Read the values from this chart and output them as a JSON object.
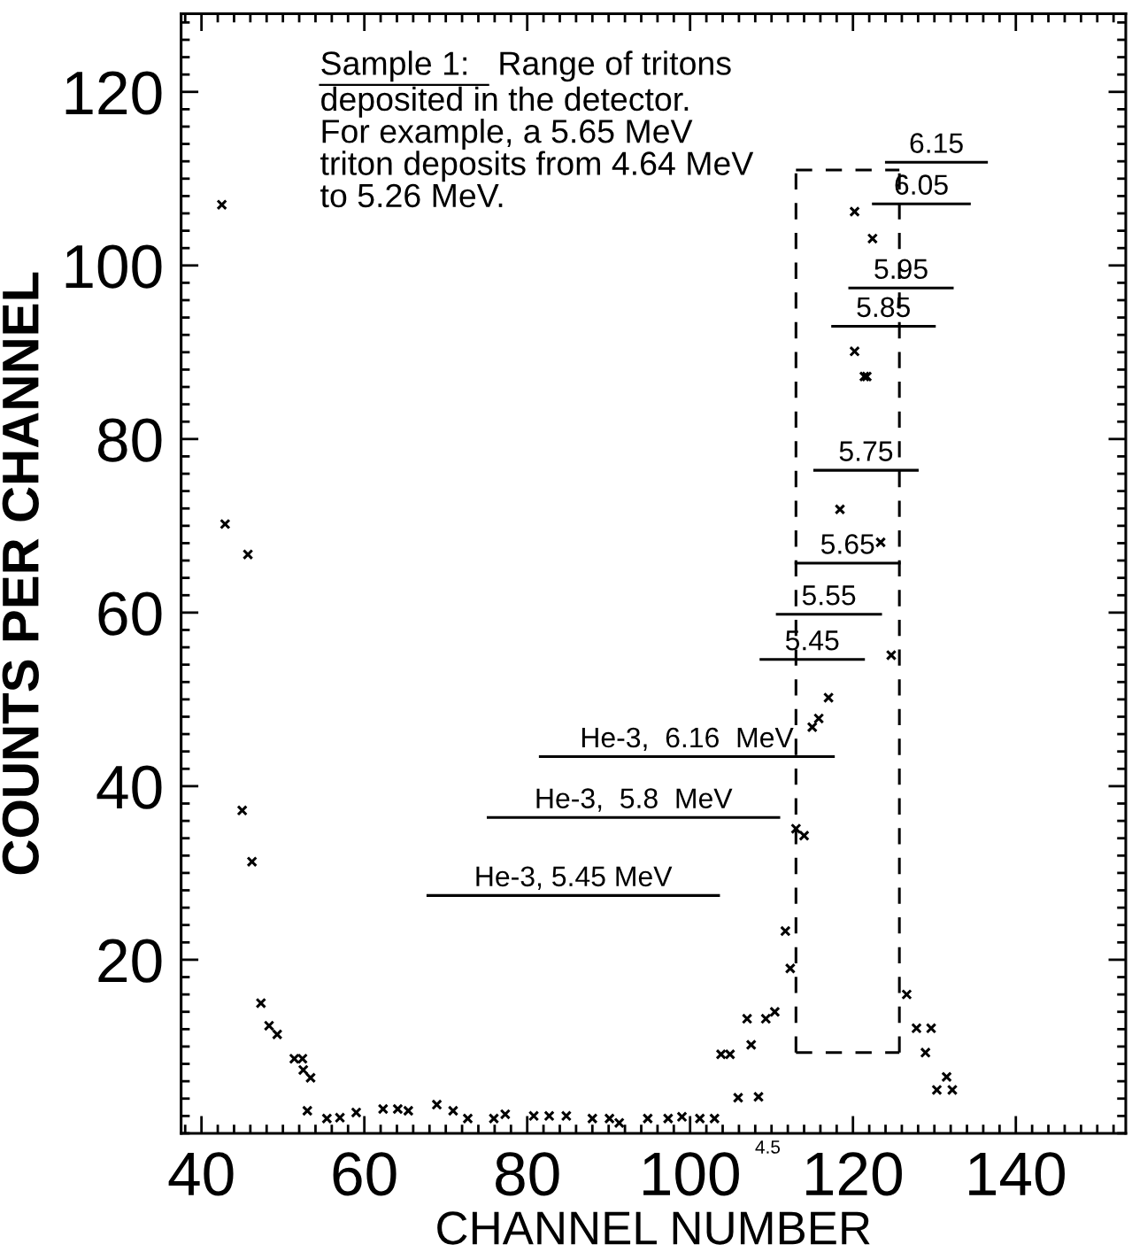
{
  "chart_data": {
    "type": "scatter",
    "xlabel": "CHANNEL NUMBER",
    "ylabel": "COUNTS PER CHANNEL",
    "xlim": [
      37.5,
      153.5
    ],
    "ylim": [
      0,
      129
    ],
    "xticks": [
      40,
      60,
      80,
      100,
      120,
      140
    ],
    "yticks": [
      20,
      40,
      60,
      80,
      100,
      120
    ],
    "grid": false,
    "legend": false,
    "marker": "cross",
    "series": [
      {
        "color": "#000000",
        "x": [
          42.5,
          42.9,
          45.7,
          45.0,
          46.2,
          47.3,
          48.3,
          49.3,
          51.4,
          52.4,
          52.5,
          53.4,
          53.0,
          55.4,
          57.0,
          59.0,
          62.3,
          64.1,
          65.4,
          68.9,
          70.9,
          72.7,
          75.9,
          77.3,
          80.8,
          82.7,
          84.8,
          88.0,
          90.1,
          91.3,
          94.8,
          97.3,
          99.0,
          101.2,
          103.0,
          103.8,
          104.9,
          105.9,
          107.0,
          107.5,
          108.4,
          109.3,
          110.4,
          111.7,
          112.3,
          113.0,
          114.0,
          115.0,
          115.8,
          117.0,
          118.4,
          120.2,
          121.4,
          121.7,
          120.2,
          122.4,
          123.4,
          124.7,
          126.6,
          127.8,
          129.6,
          128.9,
          130.3,
          131.5,
          132.2
        ],
        "values": [
          107.0,
          70.2,
          66.7,
          37.2,
          31.3,
          15.0,
          12.4,
          11.4,
          8.6,
          8.6,
          7.3,
          6.4,
          2.6,
          1.7,
          1.8,
          2.4,
          2.8,
          2.8,
          2.6,
          3.3,
          2.6,
          1.7,
          1.7,
          2.2,
          2.0,
          2.0,
          2.0,
          1.7,
          1.7,
          1.2,
          1.7,
          1.7,
          1.9,
          1.7,
          1.7,
          9.1,
          9.1,
          4.1,
          13.2,
          10.2,
          4.2,
          13.2,
          14.0,
          23.3,
          19.0,
          35.1,
          34.3,
          46.8,
          47.8,
          50.2,
          71.9,
          90.1,
          87.2,
          87.2,
          106.2,
          103.1,
          68.1,
          55.1,
          16.0,
          12.1,
          12.1,
          9.3,
          5.0,
          6.5,
          5.0
        ]
      },
      {
        "type": "line",
        "marker": "none",
        "line_style": "solid",
        "name": "He-3, 5.45 MeV",
        "color": "#000000",
        "x": [
          67.8,
          103.5
        ],
        "values": [
          27.4,
          27.4
        ]
      },
      {
        "type": "line",
        "marker": "none",
        "line_style": "solid",
        "name": "He-3,  5.8  MeV",
        "color": "#000000",
        "x": [
          75.2,
          110.9
        ],
        "values": [
          36.4,
          36.4
        ]
      },
      {
        "type": "line",
        "marker": "none",
        "line_style": "solid",
        "name": "He-3,  6.16  MeV",
        "color": "#000000",
        "x": [
          81.6,
          117.6
        ],
        "values": [
          43.4,
          43.4
        ]
      },
      {
        "type": "line",
        "marker": "none",
        "line_style": "solid",
        "name": "5.45",
        "color": "#000000",
        "x": [
          108.7,
          121.3
        ],
        "values": [
          54.6,
          54.6
        ]
      },
      {
        "type": "line",
        "marker": "none",
        "line_style": "solid",
        "name": "5.55",
        "color": "#000000",
        "x": [
          110.7,
          123.4
        ],
        "values": [
          59.8,
          59.8
        ]
      },
      {
        "type": "line",
        "marker": "none",
        "line_style": "solid",
        "name": "5.65",
        "color": "#000000",
        "x": [
          113.0,
          125.7
        ],
        "values": [
          65.7,
          65.7
        ]
      },
      {
        "type": "line",
        "marker": "none",
        "line_style": "solid",
        "name": "5.75",
        "color": "#000000",
        "x": [
          115.3,
          127.9
        ],
        "values": [
          76.4,
          76.4
        ]
      },
      {
        "type": "line",
        "marker": "none",
        "line_style": "solid",
        "name": "5.85",
        "color": "#000000",
        "x": [
          117.5,
          130.0
        ],
        "values": [
          93.0,
          93.0
        ]
      },
      {
        "type": "line",
        "marker": "none",
        "line_style": "solid",
        "name": "5.95",
        "color": "#000000",
        "x": [
          119.6,
          132.2
        ],
        "values": [
          97.4,
          97.4
        ]
      },
      {
        "type": "line",
        "marker": "none",
        "line_style": "solid",
        "name": "6.05",
        "color": "#000000",
        "x": [
          122.5,
          134.3
        ],
        "values": [
          107.1,
          107.1
        ]
      },
      {
        "type": "line",
        "marker": "none",
        "line_style": "solid",
        "name": "6.15",
        "color": "#000000",
        "x": [
          124.1,
          136.4
        ],
        "values": [
          111.9,
          111.9
        ]
      },
      {
        "type": "line",
        "marker": "none",
        "line_style": "dashed",
        "color": "#000000",
        "x": [
          113.0,
          125.7
        ],
        "values": [
          111.0,
          111.0
        ]
      },
      {
        "type": "line",
        "marker": "none",
        "line_style": "dashed",
        "color": "#000000",
        "x": [
          113.0,
          125.7
        ],
        "values": [
          9.3,
          9.3
        ]
      },
      {
        "type": "line",
        "marker": "none",
        "line_style": "dashed",
        "color": "#000000",
        "x": [
          113.0,
          113.0
        ],
        "values": [
          9.3,
          111.0
        ]
      },
      {
        "type": "line",
        "marker": "none",
        "line_style": "dashed",
        "color": "#000000",
        "x": [
          125.7,
          125.7
        ],
        "values": [
          9.3,
          111.0
        ]
      }
    ],
    "annotations": [
      "Sample 1:",
      "Range of tritons",
      "deposited in the detector.\nFor example, a 5.65 MeV\ntriton deposits from 4.64 MeV\nto 5.26 MeV.",
      "4.5"
    ]
  }
}
